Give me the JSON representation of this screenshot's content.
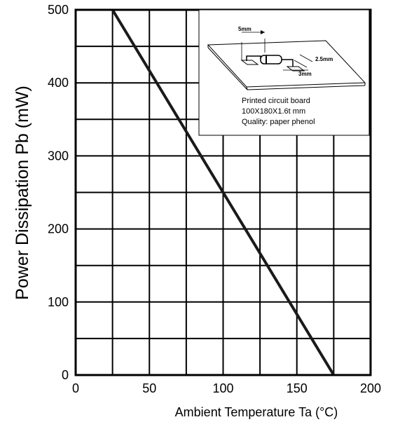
{
  "chart_data": {
    "type": "line",
    "xlabel": "Ambient Temperature Ta (°C)",
    "ylabel": "Power Dissipation Pb (mW)",
    "xlim": [
      0,
      200
    ],
    "ylim": [
      0,
      500
    ],
    "x_ticks": [
      0,
      50,
      100,
      150,
      200
    ],
    "y_ticks": [
      0,
      100,
      200,
      300,
      400,
      500
    ],
    "x_grid": [
      25,
      50,
      75,
      100,
      125,
      150,
      175
    ],
    "y_grid": [
      50,
      100,
      150,
      200,
      250,
      300,
      350,
      400,
      450
    ],
    "grid": true,
    "series": [
      {
        "x": [
          25,
          175
        ],
        "y": [
          500,
          0
        ],
        "color": "#1a1a1a"
      }
    ],
    "inset": {
      "placement": "top-right",
      "dimension_labels": [
        "5mm",
        "2.5mm",
        "3mm"
      ],
      "caption_lines": [
        "Printed circuit board",
        "100X180X1.6t mm",
        "Quality: paper phenol"
      ]
    }
  }
}
